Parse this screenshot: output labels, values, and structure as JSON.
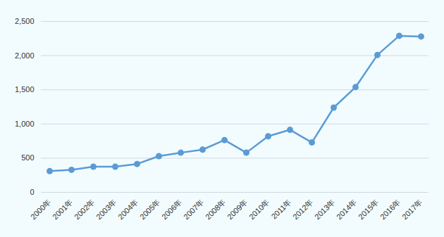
{
  "chart_data": {
    "type": "line",
    "categories": [
      "2000年",
      "2001年",
      "2002年",
      "2003年",
      "2004年",
      "2005年",
      "2006年",
      "2007年",
      "2008年",
      "2009年",
      "2010年",
      "2011年",
      "2012年",
      "2013年",
      "2014年",
      "2015年",
      "2016年",
      "2017年"
    ],
    "values": [
      310,
      330,
      375,
      375,
      415,
      530,
      580,
      625,
      765,
      580,
      820,
      915,
      730,
      1240,
      1540,
      2010,
      2290,
      2280
    ],
    "color": "#5b9bd5",
    "marker": "circle",
    "ylim": [
      0,
      2500
    ],
    "yticks": [
      0,
      500,
      {
        "value": 1000,
        "label": "1,000"
      },
      {
        "value": 1500,
        "label": "1,500"
      },
      {
        "value": 2000,
        "label": "2,000"
      },
      {
        "value": 2500,
        "label": "2,500"
      }
    ],
    "grid": true
  }
}
